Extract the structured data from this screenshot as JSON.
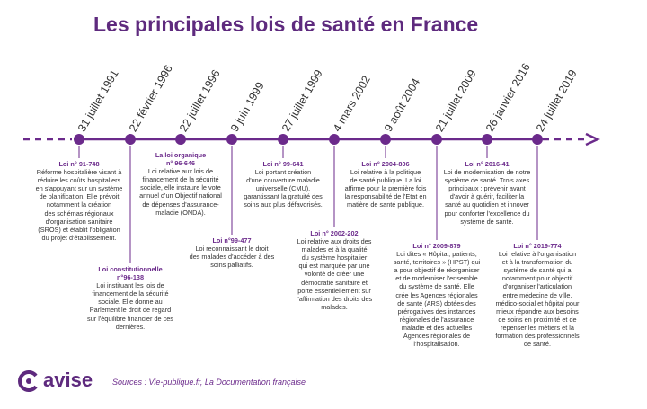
{
  "title": "Les principales lois de santé en France",
  "colors": {
    "accent": "#6b2a8b",
    "title": "#5e2a7e",
    "text": "#333333"
  },
  "dates": [
    "31 juillet 1991",
    "22 février 1996",
    "22 juillet 1996",
    "9 juin 1999",
    "27 juillet 1999",
    "4 mars 2002",
    "9 août 2004",
    "21 juillet 2009",
    "26 janvier 2016",
    "24 juillet 2019"
  ],
  "laws": [
    {
      "title": "Loi n° 91-748",
      "lines": [
        "Réforme hospitalière visant à",
        "réduire les coûts hospitaliers",
        "en s'appuyant sur un système",
        "de planification. Elle prévoit",
        "notamment la création",
        "des schémas régionaux",
        "d'organisation sanitaire",
        "(SROS) et établit l'obligation",
        "du projet d'établissement."
      ]
    },
    {
      "title_lines": [
        "Loi constitutionnelle",
        "n°96-138"
      ],
      "lines": [
        "Loi instituant les lois de",
        "financement de la sécurité",
        "sociale. Elle donne au",
        "Parlement le droit de regard",
        "sur l'équilibre financier de ces",
        "dernières."
      ]
    },
    {
      "title_lines": [
        "La loi organique",
        "n° 96-646"
      ],
      "lines": [
        "Loi relative aux lois de",
        "financement de la sécurité",
        "sociale, elle instaure le vote",
        "annuel d'un Objectif national",
        "de dépenses d'assurance-",
        "maladie (ONDA)."
      ]
    },
    {
      "title": "Loi n°99-477",
      "lines": [
        "Loi reconnaissant le droit",
        "des malades d'accéder à des",
        "soins palliatifs."
      ]
    },
    {
      "title": "Loi n° 99-641",
      "lines": [
        "Loi portant création",
        "d'une couverture maladie",
        "universelle (CMU),",
        "garantissant la gratuité des",
        "soins aux plus défavorisés."
      ]
    },
    {
      "title": "Loi n° 2002-202",
      "lines": [
        "Loi relative aux droits des",
        "malades et à la qualité",
        "du système hospitalier",
        "qui est marquée par une",
        "volonté de créer une",
        "démocratie sanitaire et",
        "porte essentiellement sur",
        "l'affirmation des droits des",
        "malades."
      ]
    },
    {
      "title": "Loi n° 2004-806",
      "lines": [
        "Loi relative à la politique",
        "de santé publique. La loi",
        "affirme pour la première fois",
        "la responsabilité de l'Etat en",
        "matière de santé publique."
      ]
    },
    {
      "title": "Loi n° 2009-879",
      "lines": [
        "Loi dites « Hôpital, patients,",
        "santé, territoires » (HPST) qui",
        "a pour objectif de réorganiser",
        "et de moderniser l'ensemble",
        "du système de santé. Elle",
        "crée les Agences régionales",
        "de santé (ARS) dotées des",
        "prérogatives des instances",
        "régionales de l'assurance",
        "maladie et des actuelles",
        "Agences régionales de",
        "l'hospitalisation."
      ]
    },
    {
      "title": "Loi n° 2016-41",
      "lines": [
        "Loi de modernisation de notre",
        "système de santé. Trois axes",
        "principaux : prévenir avant",
        "d'avoir à guérir, faciliter la",
        "santé au quotidien et innover",
        "pour conforter l'excellence du",
        "système de santé."
      ]
    },
    {
      "title": "Loi n° 2019-774",
      "lines": [
        "Loi relative à l'organisation",
        "et à la transformation du",
        "système de santé qui a",
        "notamment pour objectif",
        "d'organiser l'articulation",
        "entre médecine de ville,",
        "médico-social et hôpital pour",
        "mieux répondre aux besoins",
        "de soins en proximité et de",
        "repenser les métiers et la",
        "formation des professionnels",
        "de santé."
      ]
    }
  ],
  "logo": {
    "icon": "avise-logo-icon",
    "name": "avise"
  },
  "sources": "Sources : Vie-publique.fr, La Documentation française"
}
